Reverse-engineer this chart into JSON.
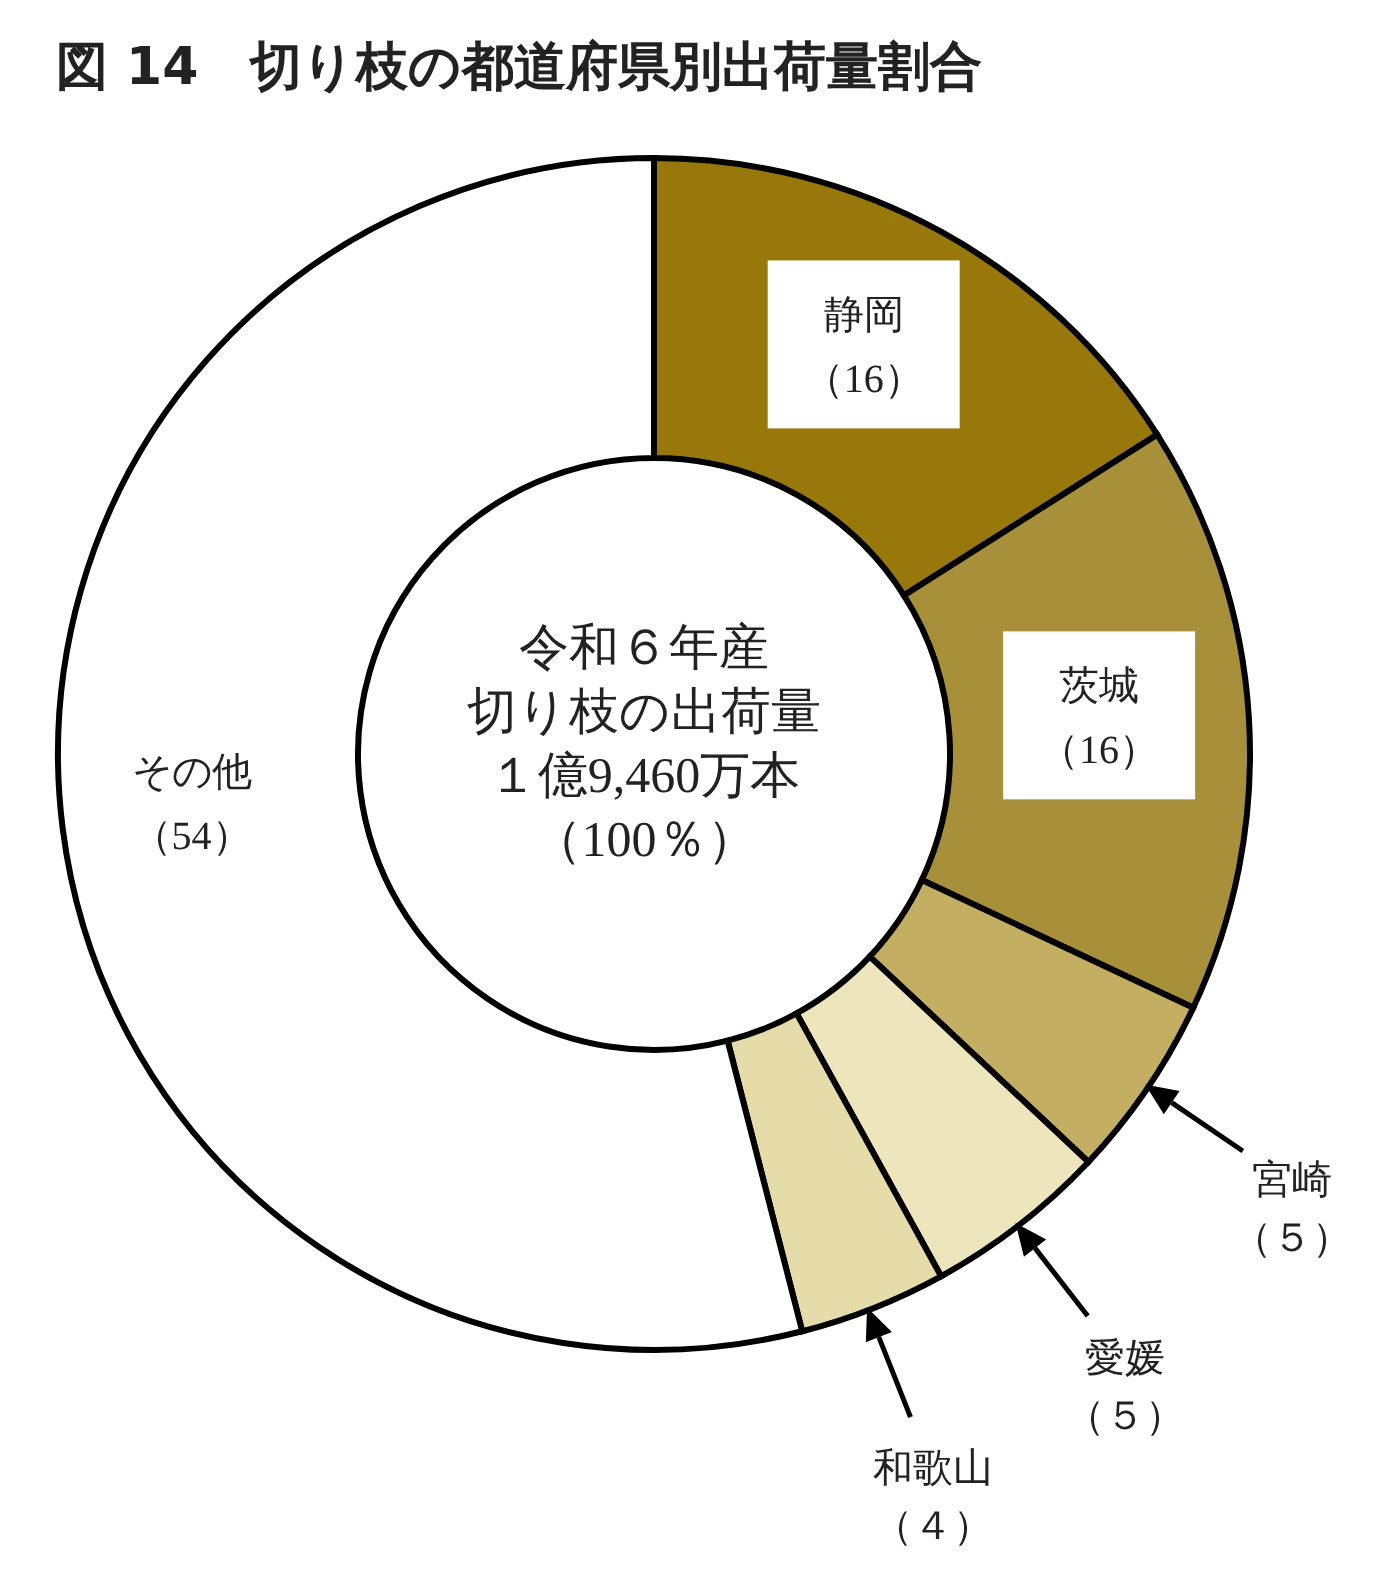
{
  "chart_data": {
    "type": "donut",
    "title": "図 14　切り枝の都道府県別出荷量割合",
    "categories": [
      "静岡",
      "茨城",
      "宮崎",
      "愛媛",
      "和歌山",
      "その他"
    ],
    "values": [
      16,
      16,
      5,
      5,
      4,
      54
    ],
    "value_labels": [
      "（16）",
      "（16）",
      "（５）",
      "（５）",
      "（４）",
      "（54）"
    ],
    "colors": [
      "#98780a",
      "#a8903a",
      "#c4ae62",
      "#ede6bc",
      "#e6dcaa",
      "#ffffff"
    ],
    "annotations": [
      "令和６年産",
      "切り枝の出荷量",
      "１億9,460万本",
      "（100％）"
    ],
    "legend": false
  }
}
